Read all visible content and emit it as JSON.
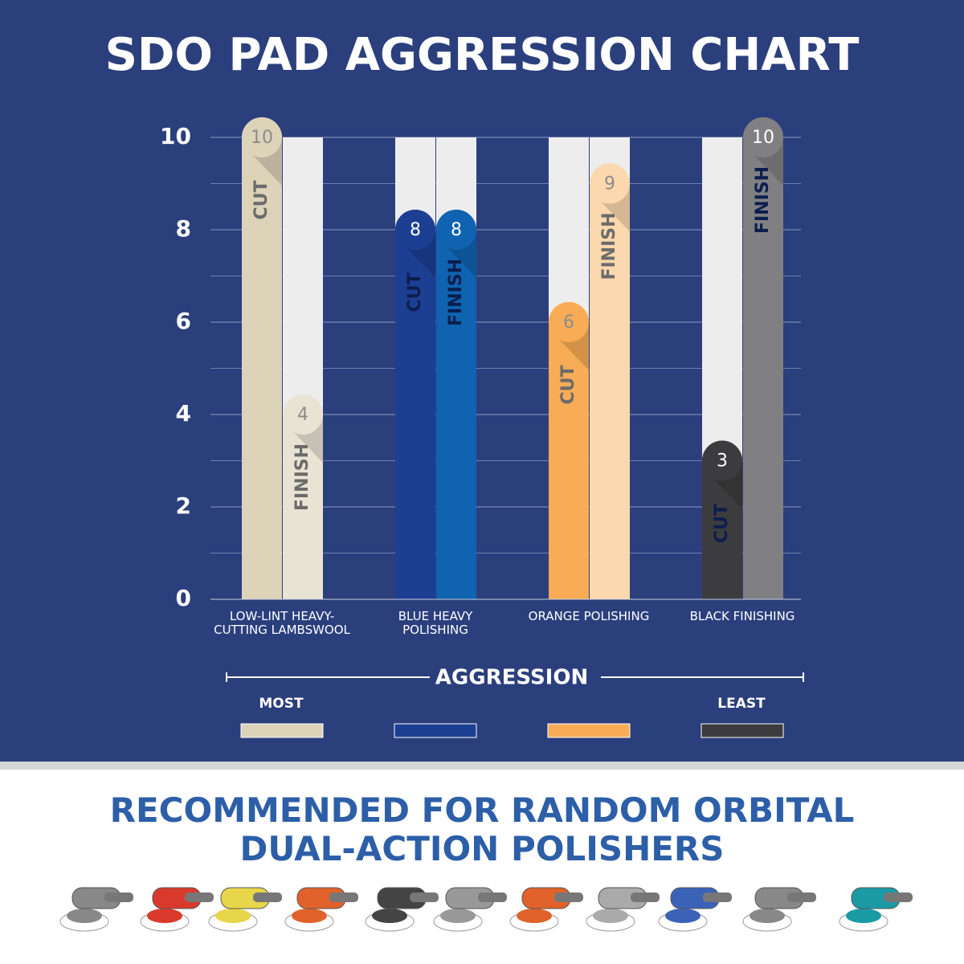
{
  "chart_data": {
    "type": "bar",
    "title": "SDO PAD AGGRESSION CHART",
    "categories": [
      "LOW-LINT HEAVY-CUTTING LAMBSWOOL",
      "BLUE HEAVY POLISHING",
      "ORANGE POLISHING",
      "BLACK FINISHING"
    ],
    "series": [
      {
        "name": "CUT",
        "values": [
          10,
          8,
          6,
          3
        ],
        "colors": [
          "#dcd3b9",
          "#1c3f94",
          "#f7ac55",
          "#3c3c3e"
        ]
      },
      {
        "name": "FINISH",
        "values": [
          4,
          8,
          9,
          10
        ],
        "colors": [
          "#e9e3d4",
          "#0f63b0",
          "#fbd8ad",
          "#808083"
        ]
      }
    ],
    "ylim": [
      0,
      10
    ],
    "yticks": [
      0,
      2,
      4,
      6,
      8,
      10
    ],
    "minor_yticks": [
      1,
      3,
      5,
      7,
      9
    ],
    "grid": true,
    "scale_title": "AGGRESSION",
    "scale_left": "MOST",
    "scale_right": "LEAST",
    "footer_title": "RECOMMENDED FOR RANDOM ORBITAL DUAL-ACTION POLISHERS"
  }
}
